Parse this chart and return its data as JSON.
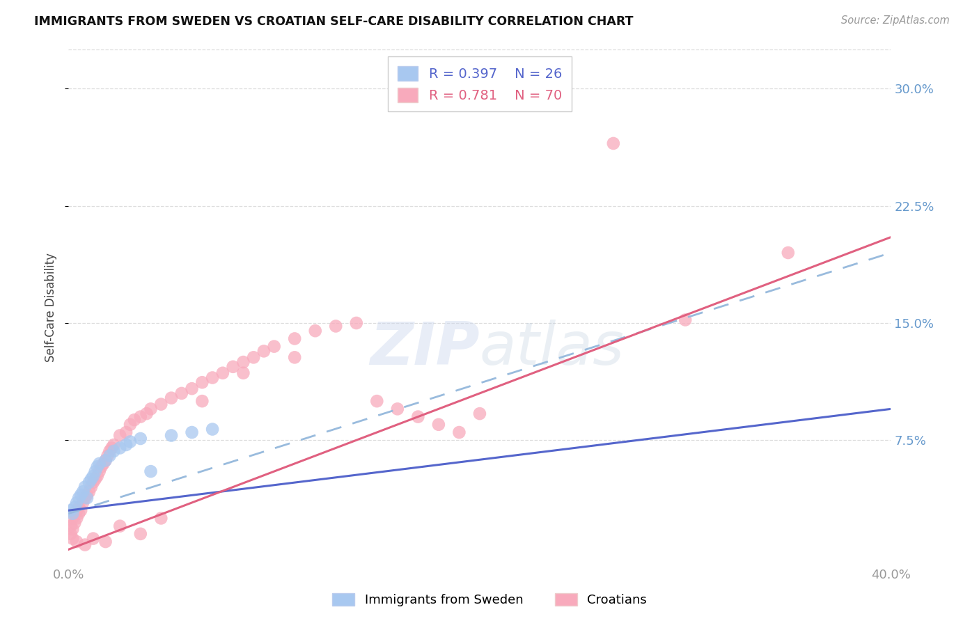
{
  "title": "IMMIGRANTS FROM SWEDEN VS CROATIAN SELF-CARE DISABILITY CORRELATION CHART",
  "source": "Source: ZipAtlas.com",
  "ylabel": "Self-Care Disability",
  "ytick_values": [
    0.075,
    0.15,
    0.225,
    0.3
  ],
  "ytick_labels": [
    "7.5%",
    "15.0%",
    "22.5%",
    "30.0%"
  ],
  "xlim": [
    0.0,
    0.4
  ],
  "ylim": [
    -0.005,
    0.325
  ],
  "legend_blue_r": "0.397",
  "legend_blue_n": "26",
  "legend_pink_r": "0.781",
  "legend_pink_n": "70",
  "legend_label_blue": "Immigrants from Sweden",
  "legend_label_pink": "Croatians",
  "blue_scatter_color": "#a8c8f0",
  "pink_scatter_color": "#f8aabc",
  "blue_line_color": "#5566cc",
  "pink_line_color": "#e06080",
  "dashed_line_color": "#99bbdd",
  "grid_color": "#dddddd",
  "tick_color": "#aaaaaa",
  "right_axis_color": "#6699cc",
  "sweden_x": [
    0.001,
    0.002,
    0.003,
    0.004,
    0.005,
    0.006,
    0.007,
    0.008,
    0.009,
    0.01,
    0.011,
    0.012,
    0.013,
    0.014,
    0.015,
    0.018,
    0.02,
    0.022,
    0.025,
    0.028,
    0.03,
    0.035,
    0.04,
    0.05,
    0.06,
    0.07
  ],
  "sweden_y": [
    0.03,
    0.028,
    0.032,
    0.035,
    0.038,
    0.04,
    0.042,
    0.045,
    0.038,
    0.048,
    0.05,
    0.052,
    0.055,
    0.058,
    0.06,
    0.062,
    0.065,
    0.068,
    0.07,
    0.072,
    0.074,
    0.076,
    0.055,
    0.078,
    0.08,
    0.082
  ],
  "croatian_x": [
    0.001,
    0.001,
    0.002,
    0.002,
    0.003,
    0.003,
    0.004,
    0.004,
    0.005,
    0.005,
    0.006,
    0.007,
    0.008,
    0.009,
    0.01,
    0.011,
    0.012,
    0.013,
    0.014,
    0.015,
    0.016,
    0.017,
    0.018,
    0.019,
    0.02,
    0.021,
    0.022,
    0.025,
    0.028,
    0.03,
    0.032,
    0.035,
    0.038,
    0.04,
    0.045,
    0.05,
    0.055,
    0.06,
    0.065,
    0.07,
    0.075,
    0.08,
    0.085,
    0.09,
    0.095,
    0.1,
    0.11,
    0.12,
    0.13,
    0.14,
    0.15,
    0.16,
    0.17,
    0.18,
    0.19,
    0.2,
    0.002,
    0.004,
    0.008,
    0.012,
    0.018,
    0.025,
    0.035,
    0.045,
    0.065,
    0.085,
    0.11,
    0.265,
    0.3,
    0.35
  ],
  "croatian_y": [
    0.015,
    0.02,
    0.018,
    0.025,
    0.022,
    0.028,
    0.025,
    0.03,
    0.028,
    0.032,
    0.03,
    0.035,
    0.038,
    0.04,
    0.042,
    0.045,
    0.048,
    0.05,
    0.052,
    0.055,
    0.058,
    0.06,
    0.062,
    0.065,
    0.068,
    0.07,
    0.072,
    0.078,
    0.08,
    0.085,
    0.088,
    0.09,
    0.092,
    0.095,
    0.098,
    0.102,
    0.105,
    0.108,
    0.112,
    0.115,
    0.118,
    0.122,
    0.125,
    0.128,
    0.132,
    0.135,
    0.14,
    0.145,
    0.148,
    0.15,
    0.1,
    0.095,
    0.09,
    0.085,
    0.08,
    0.092,
    0.012,
    0.01,
    0.008,
    0.012,
    0.01,
    0.02,
    0.015,
    0.025,
    0.1,
    0.118,
    0.128,
    0.265,
    0.152,
    0.195
  ],
  "blue_line_x0": 0.0,
  "blue_line_y0": 0.03,
  "blue_line_x1": 0.4,
  "blue_line_y1": 0.095,
  "pink_line_x0": 0.0,
  "pink_line_y0": 0.005,
  "pink_line_x1": 0.4,
  "pink_line_y1": 0.205,
  "dashed_line_x0": 0.0,
  "dashed_line_y0": 0.028,
  "dashed_line_x1": 0.4,
  "dashed_line_y1": 0.195
}
